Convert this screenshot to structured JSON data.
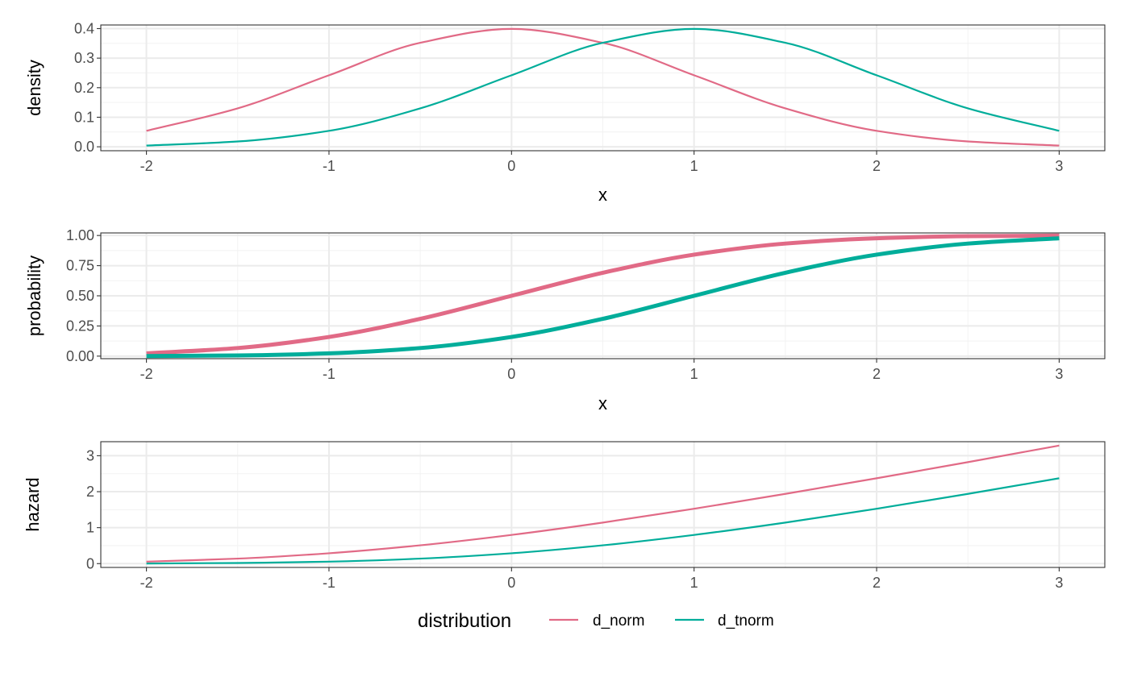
{
  "chart_data": [
    {
      "type": "line",
      "xlabel": "x",
      "ylabel": "density",
      "xlim": [
        -2,
        3
      ],
      "ylim": [
        -0.0133,
        0.4122
      ],
      "x_ticks": [
        "-2",
        "-1",
        "0",
        "1",
        "2",
        "3"
      ],
      "y_ticks": [
        "0.0",
        "0.1",
        "0.2",
        "0.3",
        "0.4"
      ],
      "grid": true,
      "series": [
        {
          "name": "d_norm",
          "x": [
            -2,
            -1.5,
            -1,
            -0.5,
            0,
            0.5,
            1,
            1.5,
            2,
            2.5,
            3
          ],
          "y": [
            0.054,
            0.13,
            0.242,
            0.352,
            0.399,
            0.352,
            0.242,
            0.13,
            0.054,
            0.018,
            0.004
          ]
        },
        {
          "name": "d_tnorm",
          "x": [
            -2,
            -1.5,
            -1,
            -0.5,
            0,
            0.5,
            1,
            1.5,
            2,
            2.5,
            3
          ],
          "y": [
            0.004,
            0.018,
            0.054,
            0.13,
            0.242,
            0.352,
            0.399,
            0.352,
            0.242,
            0.13,
            0.054
          ]
        }
      ]
    },
    {
      "type": "line",
      "xlabel": "x",
      "ylabel": "probability",
      "xlim": [
        -2,
        3
      ],
      "ylim": [
        -0.0211,
        1.0211
      ],
      "x_ticks": [
        "-2",
        "-1",
        "0",
        "1",
        "2",
        "3"
      ],
      "y_ticks": [
        "0.00",
        "0.25",
        "0.50",
        "0.75",
        "1.00"
      ],
      "grid": true,
      "series": [
        {
          "name": "d_norm",
          "x": [
            -2,
            -1.5,
            -1,
            -0.5,
            0,
            0.5,
            1,
            1.5,
            2,
            2.5,
            3
          ],
          "y": [
            0.023,
            0.067,
            0.159,
            0.309,
            0.5,
            0.691,
            0.841,
            0.933,
            0.977,
            0.994,
            0.999
          ]
        },
        {
          "name": "d_tnorm",
          "x": [
            -2,
            -1.5,
            -1,
            -0.5,
            0,
            0.5,
            1,
            1.5,
            2,
            2.5,
            3
          ],
          "y": [
            0.001,
            0.006,
            0.023,
            0.067,
            0.159,
            0.309,
            0.5,
            0.691,
            0.841,
            0.933,
            0.977
          ]
        }
      ]
    },
    {
      "type": "line",
      "xlabel": "",
      "ylabel": "hazard",
      "xlim": [
        -2,
        3
      ],
      "ylim": [
        -0.106,
        3.39
      ],
      "x_ticks": [
        "-2",
        "-1",
        "0",
        "1",
        "2",
        "3"
      ],
      "y_ticks": [
        "0",
        "1",
        "2",
        "3"
      ],
      "grid": true,
      "series": [
        {
          "name": "d_norm",
          "x": [
            -2,
            -1.5,
            -1,
            -0.5,
            0,
            0.5,
            1,
            1.5,
            2,
            2.5,
            3
          ],
          "y": [
            0.055,
            0.139,
            0.288,
            0.509,
            0.798,
            1.141,
            1.525,
            1.939,
            2.373,
            2.821,
            3.283
          ]
        },
        {
          "name": "d_tnorm",
          "x": [
            -2,
            -1.5,
            -1,
            -0.5,
            0,
            0.5,
            1,
            1.5,
            2,
            2.5,
            3
          ],
          "y": [
            0.004,
            0.018,
            0.055,
            0.139,
            0.288,
            0.509,
            0.798,
            1.141,
            1.525,
            1.939,
            2.373
          ]
        }
      ]
    }
  ],
  "legend": {
    "title": "distribution",
    "placement": "bottom",
    "items": [
      {
        "label": "d_norm",
        "color": "#E16A86"
      },
      {
        "label": "d_tnorm",
        "color": "#00AD9A"
      }
    ]
  },
  "colors": {
    "d_norm": "#E16A86",
    "d_tnorm": "#00AD9A"
  }
}
